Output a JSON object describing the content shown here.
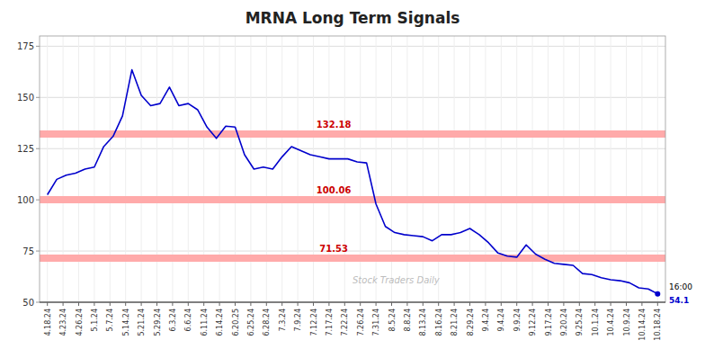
{
  "chart_data": {
    "type": "line",
    "title": "MRNA Long Term Signals",
    "x": [
      0,
      0.6,
      1.2,
      1.8,
      2.4,
      3,
      3.6,
      4.2,
      4.8,
      5.4,
      6,
      6.6,
      7.2,
      7.8,
      8.4,
      9,
      9.6,
      10.2,
      10.8,
      11.4,
      12,
      12.6,
      13.2,
      13.8,
      14.4,
      15,
      15.6,
      16.2,
      16.8,
      17.4,
      18,
      18.6,
      19.2,
      19.8,
      20.4,
      21,
      21.6,
      22.2,
      22.8,
      23.4,
      24,
      24.6,
      25.2,
      25.8,
      26.4,
      27,
      27.6,
      28.2,
      28.8,
      29.4,
      30,
      30.6,
      31.2,
      31.8,
      32.4,
      33,
      33.6,
      34.2,
      34.8,
      35.4,
      36,
      36.6,
      37.2,
      37.8,
      38.4,
      39
    ],
    "values": [
      102.5,
      110.0,
      112.0,
      113.0,
      115.0,
      116.0,
      126.0,
      131.0,
      141.0,
      163.5,
      151.0,
      146.0,
      147.0,
      155.0,
      146.0,
      147.0,
      144.0,
      135.5,
      130.0,
      136.0,
      135.5,
      122.0,
      115.0,
      116.0,
      115.0,
      121.0,
      126.0,
      124.0,
      122.0,
      121.0,
      120.0,
      120.0,
      120.0,
      118.5,
      118.0,
      98.0,
      87.0,
      84.0,
      83.0,
      82.5,
      82.0,
      80.0,
      83.0,
      83.0,
      84.0,
      86.0,
      83.0,
      79.0,
      74.0,
      72.5,
      72.0,
      78.0,
      73.5,
      71.0,
      69.0,
      68.5,
      68.0,
      64.0,
      63.5,
      62.0,
      61.0,
      60.5,
      59.5,
      57.0,
      56.5,
      54.1
    ],
    "color": "#0000cc",
    "xlim": [
      -0.5,
      39.5
    ],
    "xticks": [
      {
        "value": 0,
        "label": "4.18.24"
      },
      {
        "value": 1,
        "label": "4.23.24"
      },
      {
        "value": 2,
        "label": "4.26.24"
      },
      {
        "value": 3,
        "label": "5.1.24"
      },
      {
        "value": 4,
        "label": "5.7.24"
      },
      {
        "value": 5,
        "label": "5.14.24"
      },
      {
        "value": 6,
        "label": "5.21.24"
      },
      {
        "value": 7,
        "label": "5.29.24"
      },
      {
        "value": 8,
        "label": "6.3.24"
      },
      {
        "value": 9,
        "label": "6.6.24"
      },
      {
        "value": 10,
        "label": "6.11.24"
      },
      {
        "value": 11,
        "label": "6.14.24"
      },
      {
        "value": 12,
        "label": "6.20.25"
      },
      {
        "value": 13,
        "label": "6.25.24"
      },
      {
        "value": 14,
        "label": "6.28.24"
      },
      {
        "value": 15,
        "label": "7.3.24"
      },
      {
        "value": 16,
        "label": "7.9.24"
      },
      {
        "value": 17,
        "label": "7.12.24"
      },
      {
        "value": 18,
        "label": "7.17.24"
      },
      {
        "value": 19,
        "label": "7.22.24"
      },
      {
        "value": 20,
        "label": "7.26.24"
      },
      {
        "value": 21,
        "label": "7.31.24"
      },
      {
        "value": 22,
        "label": "8.5.24"
      },
      {
        "value": 23,
        "label": "8.8.24"
      },
      {
        "value": 24,
        "label": "8.13.24"
      },
      {
        "value": 25,
        "label": "8.16.24"
      },
      {
        "value": 26,
        "label": "8.21.24"
      },
      {
        "value": 27,
        "label": "8.29.24"
      },
      {
        "value": 28,
        "label": "9.4.24"
      },
      {
        "value": 29,
        "label": "9.4.24"
      },
      {
        "value": 30,
        "label": "9.9.24"
      },
      {
        "value": 31,
        "label": "9.12.24"
      },
      {
        "value": 32,
        "label": "9.17.24"
      },
      {
        "value": 33,
        "label": "9.20.24"
      },
      {
        "value": 34,
        "label": "9.25.24"
      },
      {
        "value": 35,
        "label": "10.1.24"
      },
      {
        "value": 36,
        "label": "10.4.24"
      },
      {
        "value": 37,
        "label": "10.9.24"
      },
      {
        "value": 38,
        "label": "10.14.24"
      },
      {
        "value": 39,
        "label": "10.18.24"
      }
    ],
    "ylim": [
      50,
      180
    ],
    "yticks": [
      50,
      75,
      100,
      125,
      150,
      175
    ],
    "grid": true,
    "hlines": [
      {
        "value": 132.18,
        "label": "132.18",
        "color": "#ffaaaa"
      },
      {
        "value": 100.06,
        "label": "100.06",
        "color": "#ffaaaa"
      },
      {
        "value": 71.53,
        "label": "71.53",
        "color": "#ffaaaa"
      }
    ],
    "annotations": [
      {
        "text": "Stock Traders Daily"
      },
      {
        "text": "16:00"
      },
      {
        "text": "54.1"
      }
    ]
  }
}
